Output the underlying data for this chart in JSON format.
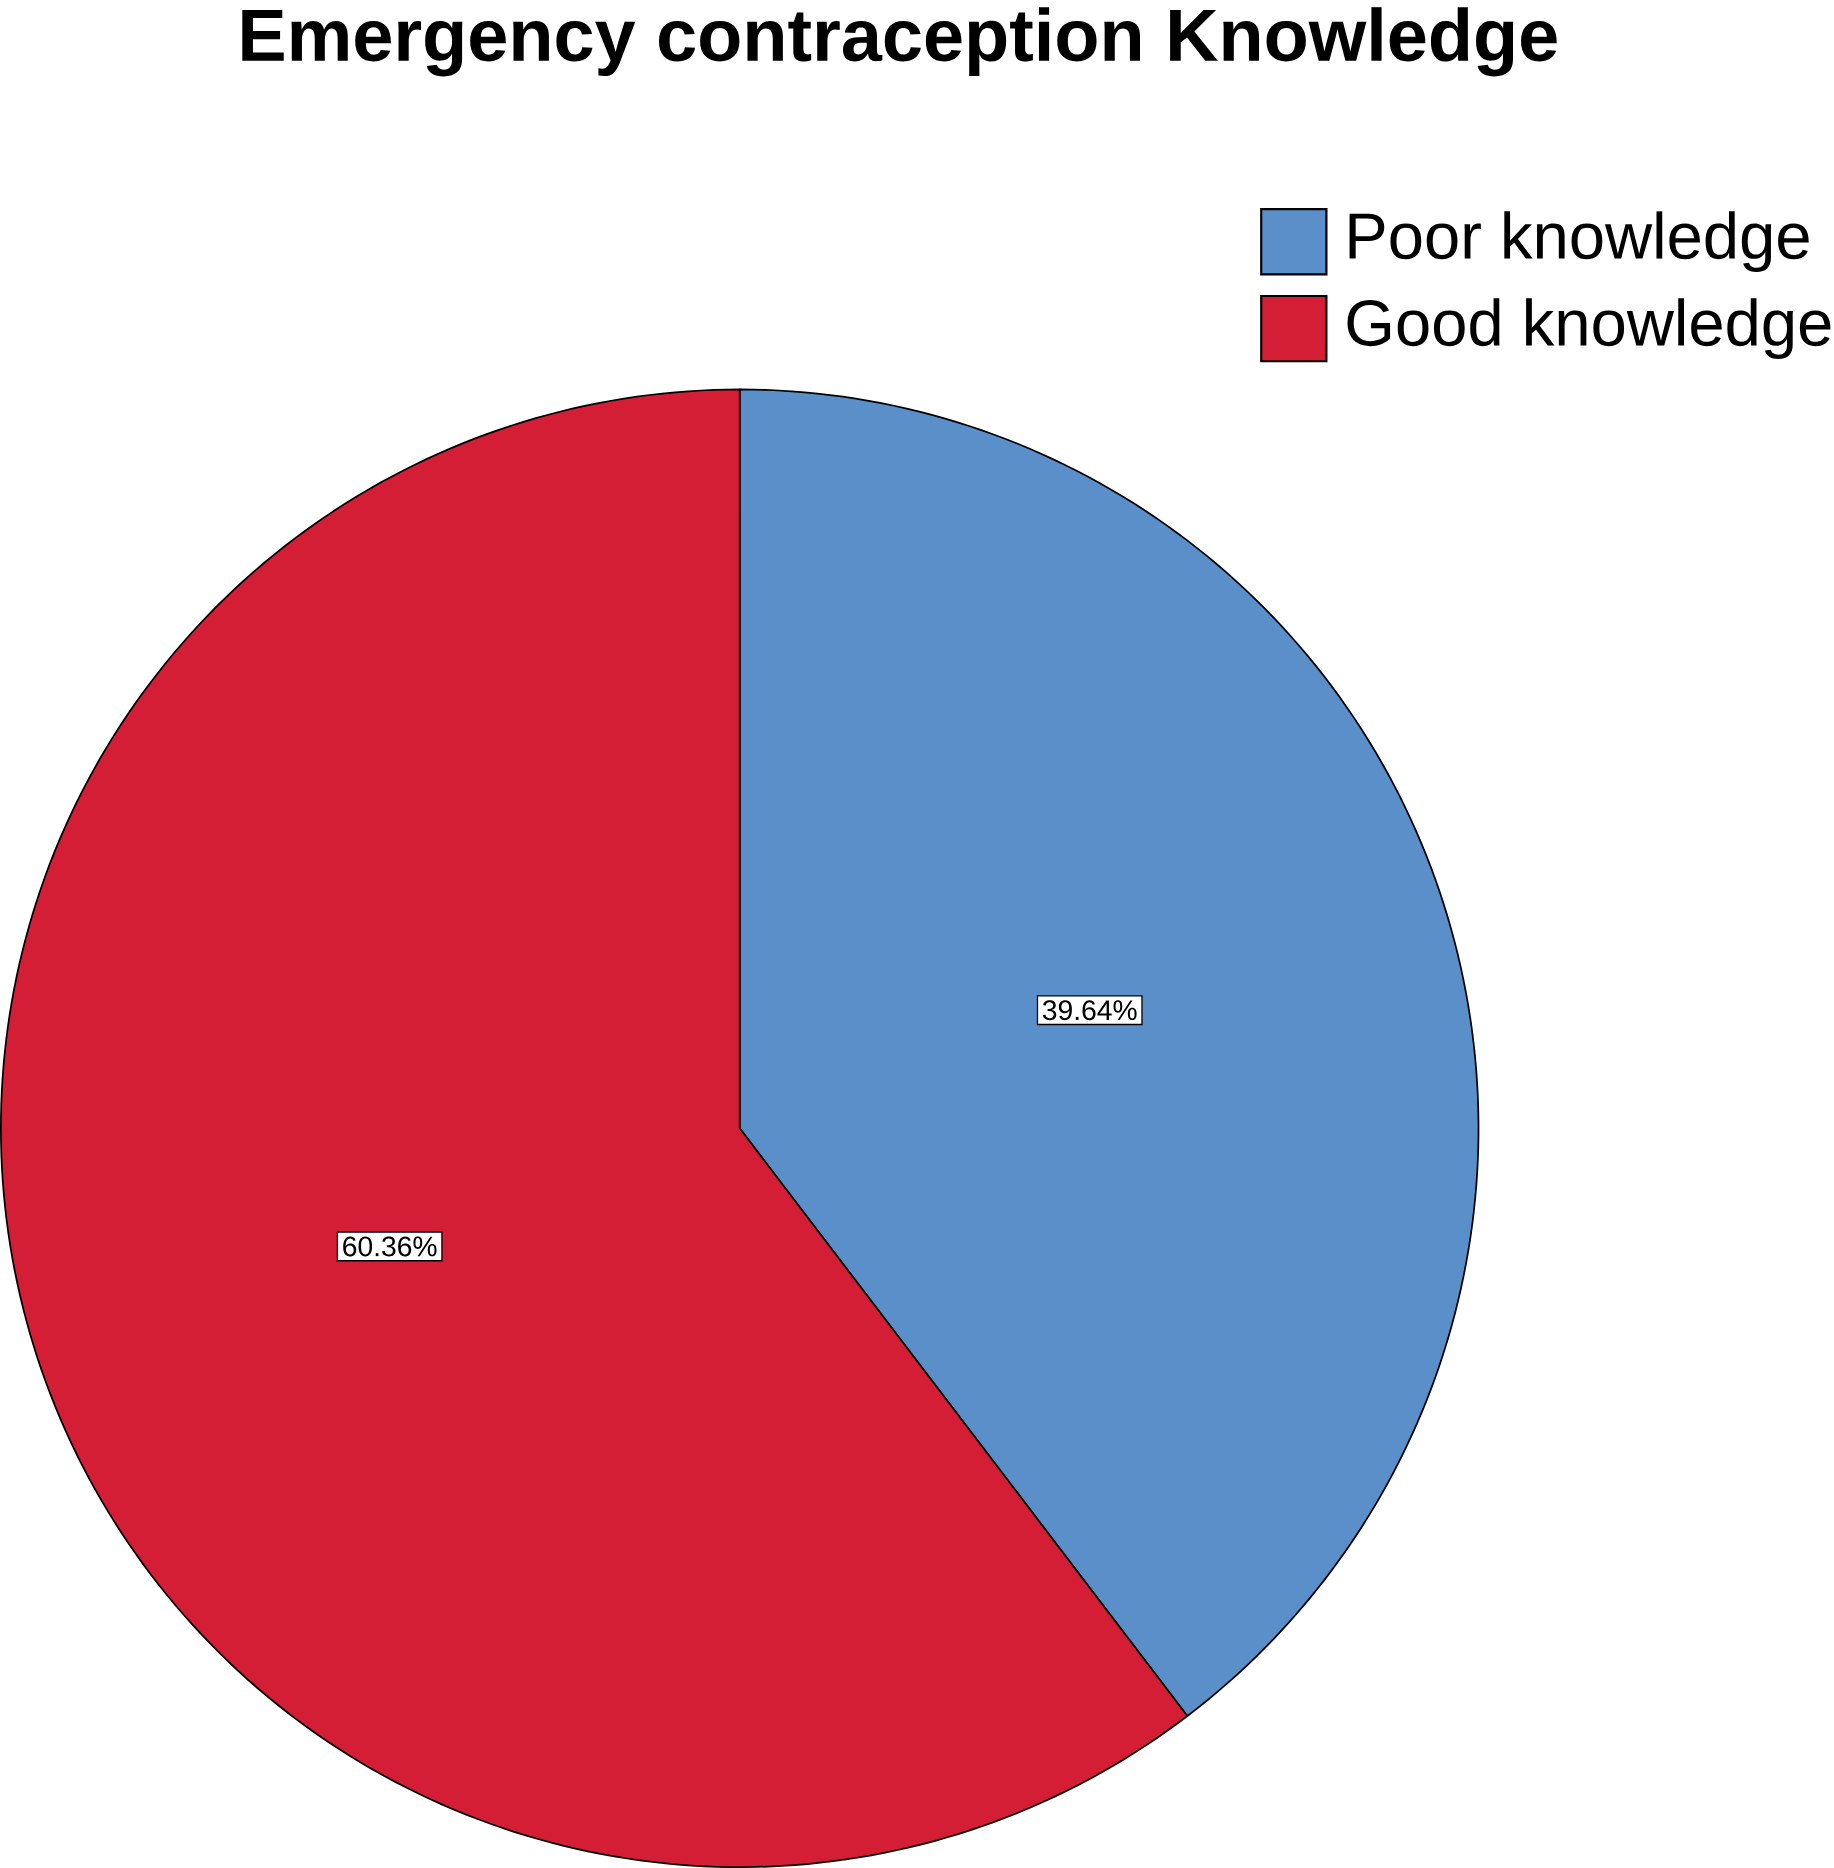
{
  "chart_data": {
    "type": "pie",
    "title": "Emergency contraception Knowledge",
    "categories": [
      "Poor knowledge",
      "Good knowledge"
    ],
    "values": [
      39.64,
      60.36
    ],
    "colors": [
      "#5b8fc9",
      "#d41e35"
    ],
    "value_labels": [
      "39.64%",
      "60.36%"
    ],
    "legend": "top right"
  }
}
